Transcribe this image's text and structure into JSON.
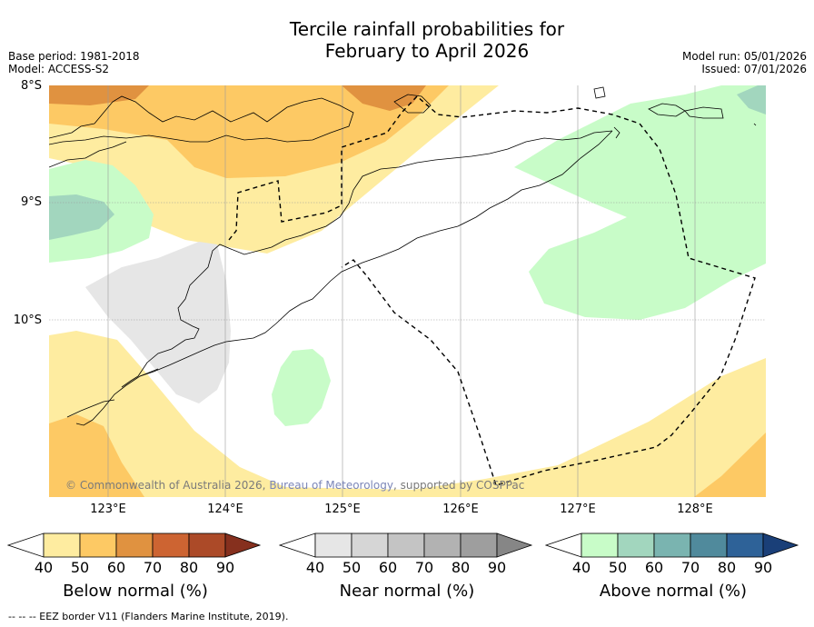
{
  "title_line1": "Tercile rainfall probabilities for",
  "title_line2": "February to April 2026",
  "base_period": "Base period: 1981-2018",
  "model": "Model: ACCESS-S2",
  "model_run": "Model run: 05/01/2026",
  "issued": "Issued: 07/01/2026",
  "latitude_labels": [
    "8°S",
    "9°S",
    "10°S"
  ],
  "longitude_labels": [
    "123°E",
    "124°E",
    "125°E",
    "126°E",
    "127°E",
    "128°E"
  ],
  "credit": {
    "prefix": "© Commonwealth of Australia 2026, ",
    "link": "Bureau of Meteorology",
    "suffix": ", supported by COSPPac"
  },
  "colorbars": [
    {
      "name": "below-normal",
      "title": "Below normal (%)",
      "ticks": [
        "40",
        "50",
        "60",
        "70",
        "80",
        "90"
      ],
      "colors": [
        "#ffffff",
        "#feeca0",
        "#fdc964",
        "#e09240",
        "#cd6432",
        "#ac4a28",
        "#86301e"
      ]
    },
    {
      "name": "near-normal",
      "title": "Near normal (%)",
      "ticks": [
        "40",
        "50",
        "60",
        "70",
        "80",
        "90"
      ],
      "colors": [
        "#ffffff",
        "#e6e6e6",
        "#d6d6d6",
        "#c4c4c4",
        "#b2b2b2",
        "#9e9e9e",
        "#868686"
      ]
    },
    {
      "name": "above-normal",
      "title": "Above normal (%)",
      "ticks": [
        "40",
        "50",
        "60",
        "70",
        "80",
        "90"
      ],
      "colors": [
        "#ffffff",
        "#c8fcc8",
        "#a2d6be",
        "#7ab4b0",
        "#508a9c",
        "#2e6298",
        "#1a3f78"
      ]
    }
  ],
  "footer": "--  --  -- EEZ border V11 (Flanders Marine Institute, 2019)."
}
